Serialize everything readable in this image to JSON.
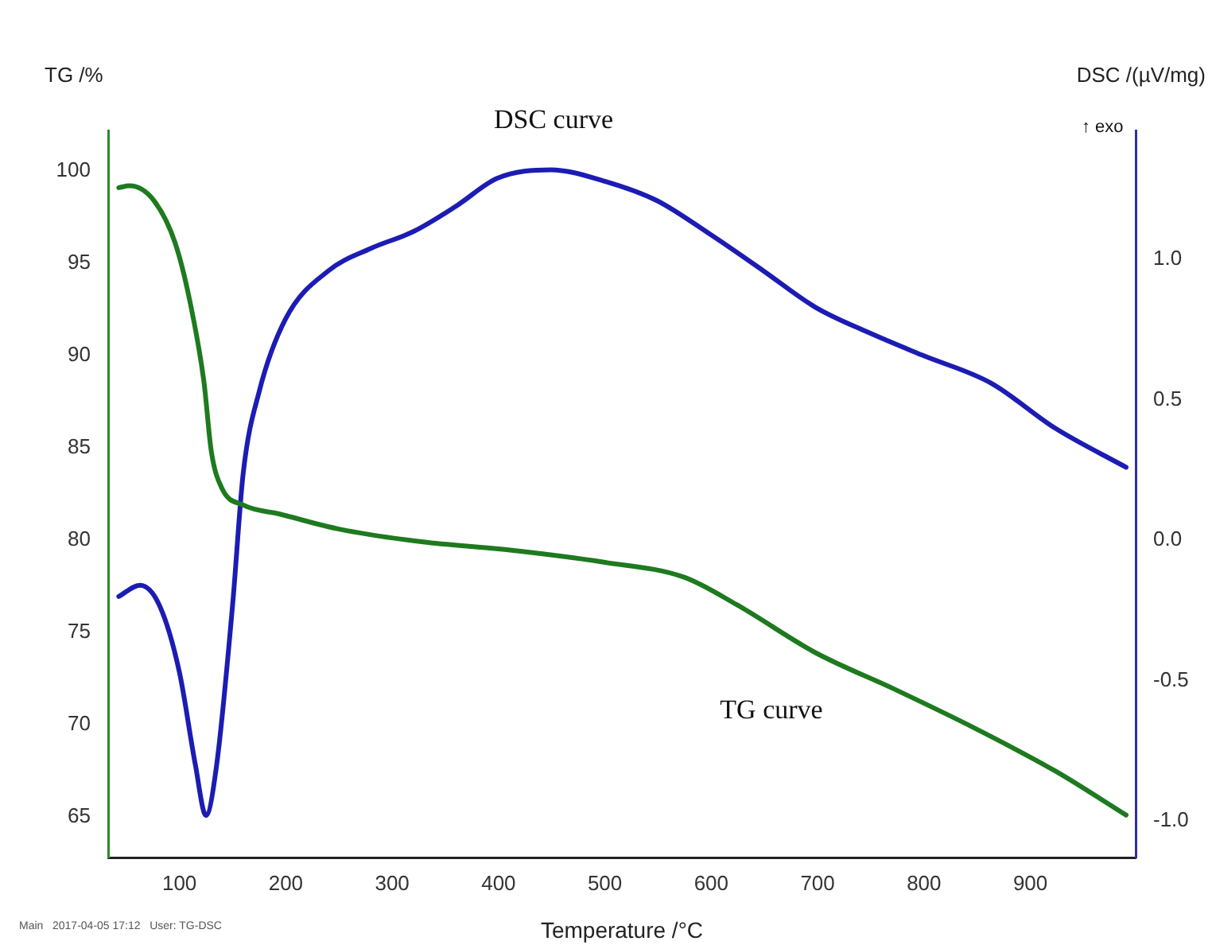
{
  "chart_data": {
    "type": "line",
    "xlabel": "Temperature /°C",
    "ylabel": "TG /%",
    "y2label": "DSC /(µV/mg)",
    "xlim": [
      33,
      999
    ],
    "xticks": [
      100,
      200,
      300,
      400,
      500,
      600,
      700,
      800,
      900
    ],
    "ylim": [
      62.8,
      102.2
    ],
    "yticks": [
      65,
      70,
      75,
      80,
      85,
      90,
      95,
      100
    ],
    "y2lim": [
      -1.13,
      1.46
    ],
    "y2ticks": [
      {
        "value": -1,
        "label": "-1.0"
      },
      {
        "value": -0.5,
        "label": "-0.5"
      },
      {
        "value": 0,
        "label": "0.0"
      },
      {
        "value": 0.5,
        "label": "0.5"
      },
      {
        "value": 1,
        "label": "1.0"
      }
    ],
    "series": [
      {
        "color": "#1e7a1e",
        "x": [
          43,
          53,
          76,
          96,
          110,
          123,
          130,
          140,
          160,
          195,
          250,
          329,
          404,
          499,
          574,
          624,
          698,
          773,
          848,
          923,
          990
        ],
        "values": [
          99.1,
          99.2,
          98.4,
          96.1,
          92.9,
          88.6,
          84.8,
          82.8,
          81.9,
          81.4,
          80.6,
          79.9,
          79.5,
          78.8,
          78.0,
          76.5,
          73.9,
          71.9,
          69.8,
          67.5,
          65.1
        ]
      },
      {
        "color": "#1c1cb4",
        "axis": "y2",
        "x": [
          43,
          63,
          81,
          100,
          115,
          125,
          135,
          150,
          160,
          175,
          200,
          240,
          280,
          320,
          360,
          399,
          449,
          499,
          549,
          599,
          649,
          698,
          748,
          798,
          863,
          923,
          990
        ],
        "values": [
          -0.2,
          -0.16,
          -0.23,
          -0.47,
          -0.8,
          -0.98,
          -0.8,
          -0.23,
          0.24,
          0.53,
          0.79,
          0.96,
          1.04,
          1.1,
          1.19,
          1.29,
          1.32,
          1.28,
          1.21,
          1.09,
          0.96,
          0.83,
          0.74,
          0.66,
          0.56,
          0.4,
          0.26
        ]
      }
    ],
    "annotations": [
      "DSC curve",
      "TG curve",
      "↑ exo",
      "Main   2017-04-05 17:12   User: TG-DSC"
    ],
    "grid": false,
    "legend": false,
    "marker": "none",
    "line_style": "solid"
  }
}
